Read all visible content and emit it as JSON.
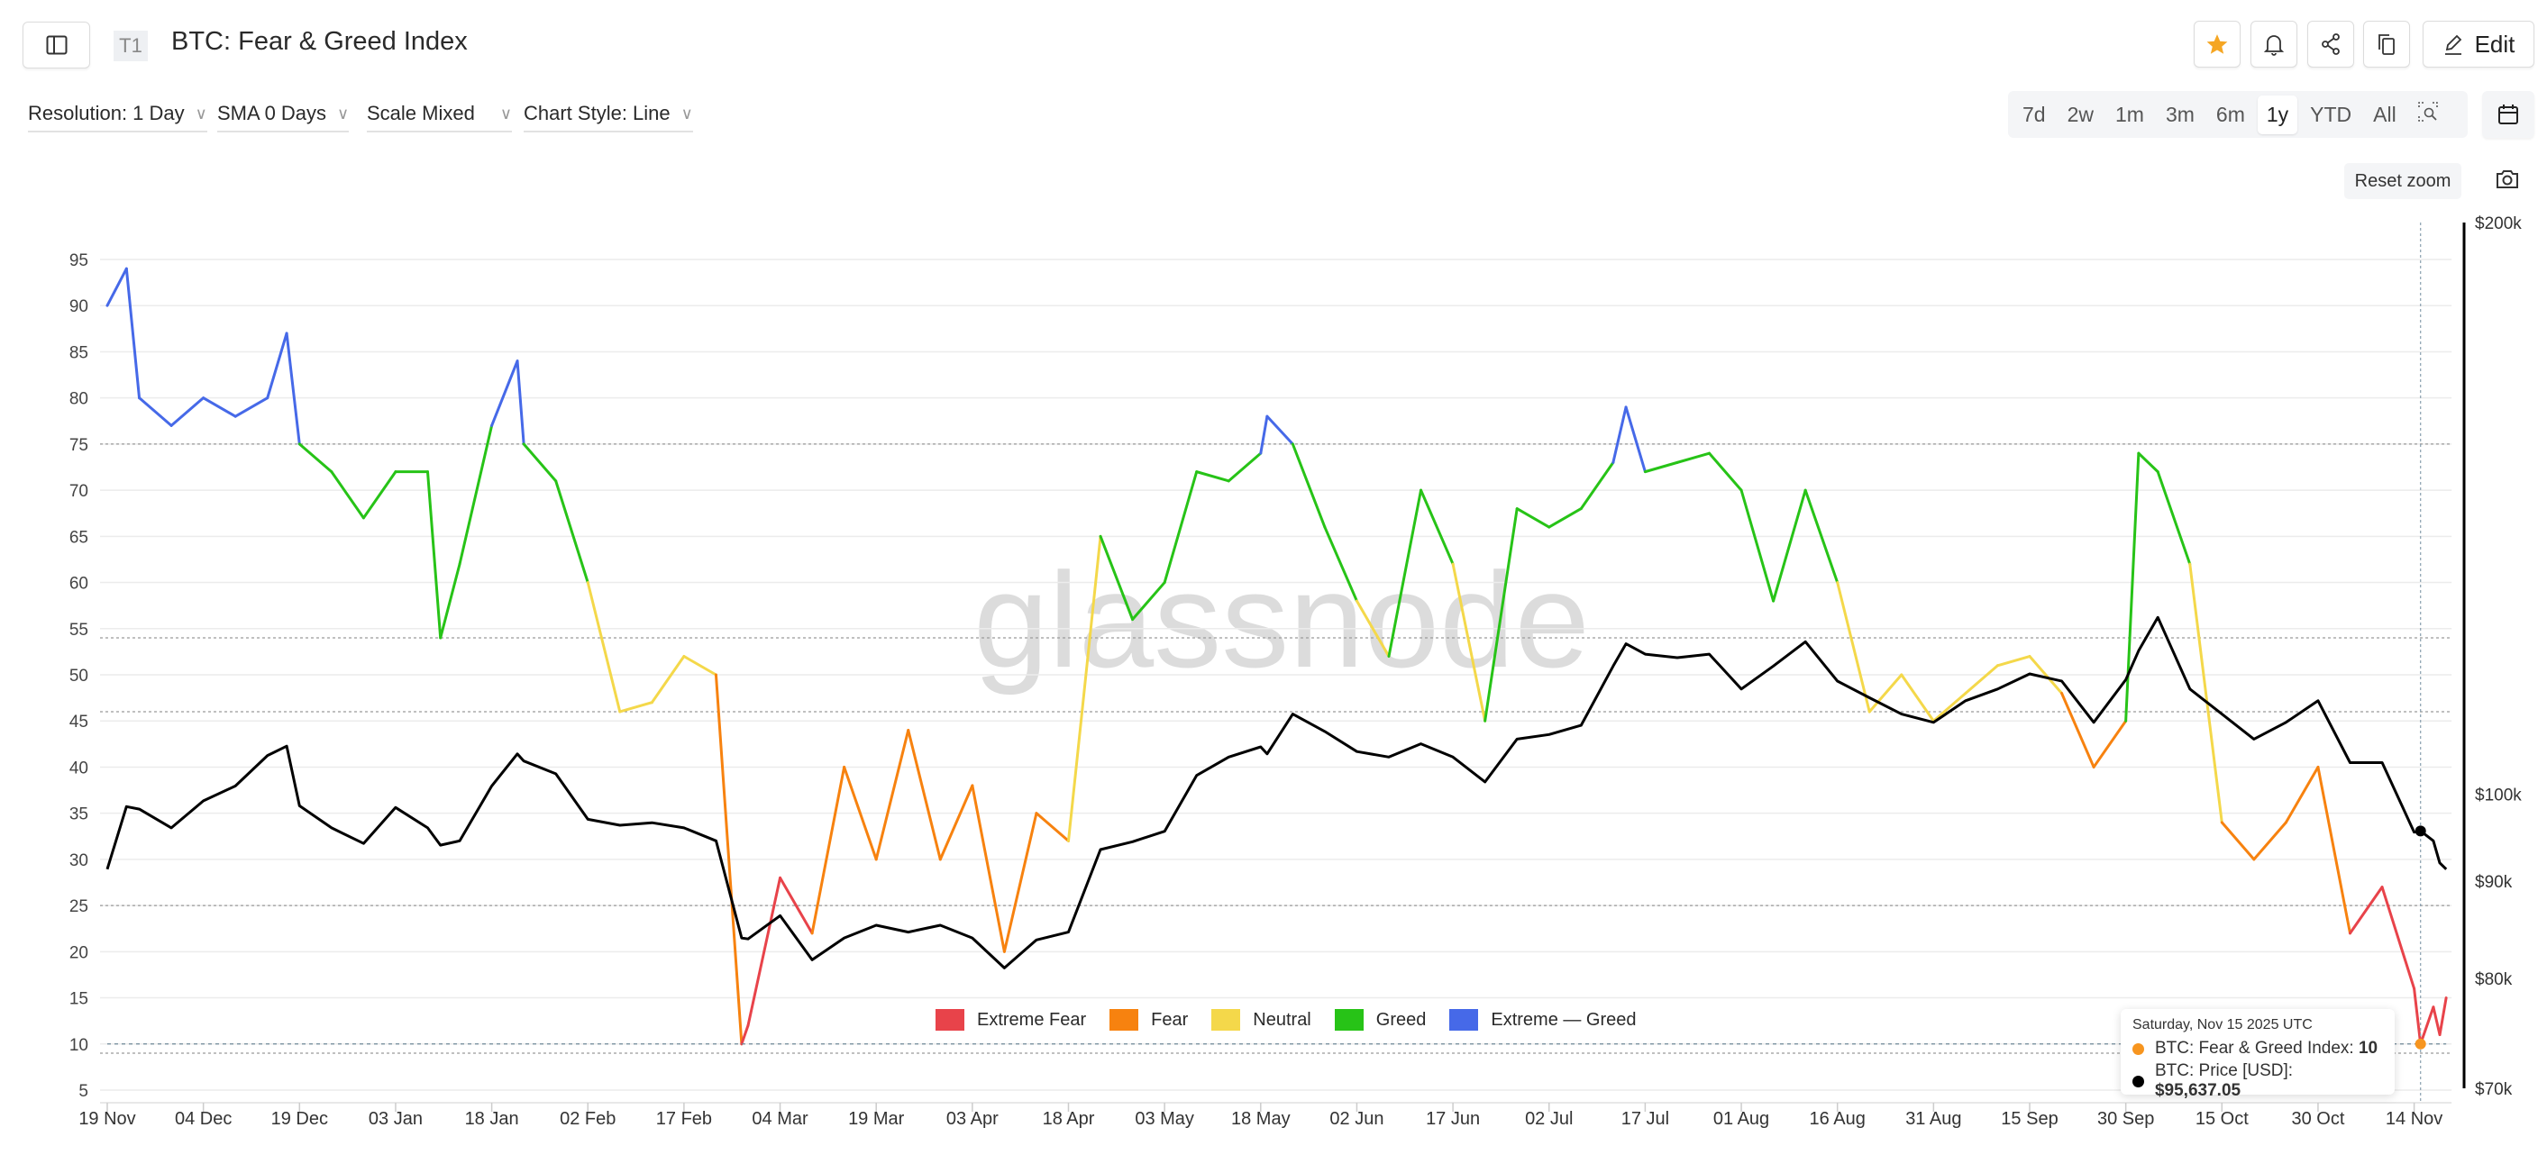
{
  "header": {
    "badge": "T1",
    "title": "BTC: Fear & Greed Index",
    "edit_label": "Edit",
    "star_color": "#f5a623"
  },
  "toolbar": {
    "resolution": "Resolution: 1 Day",
    "sma": "SMA 0 Days",
    "scale": "Scale Mixed",
    "chart_style": "Chart Style: Line"
  },
  "ranges": [
    "7d",
    "2w",
    "1m",
    "3m",
    "6m",
    "1y",
    "YTD",
    "All"
  ],
  "active_range": "1y",
  "reset_zoom": "Reset zoom",
  "watermark": "glassnode",
  "legend": [
    {
      "label": "Extreme Fear",
      "color": "#e8434a"
    },
    {
      "label": "Fear",
      "color": "#f7820f"
    },
    {
      "label": "Neutral",
      "color": "#f4d84a"
    },
    {
      "label": "Greed",
      "color": "#27c317"
    },
    {
      "label": "Extreme — Greed",
      "color": "#4669e8"
    }
  ],
  "tooltip": {
    "date": "Saturday, Nov 15 2025 UTC",
    "fgi_label": "BTC: Fear & Greed Index: ",
    "fgi_value": "10",
    "price_label": "BTC: Price [USD]: ",
    "price_value": "$95,637.05",
    "fgi_color": "#f7951f",
    "price_color": "#000000"
  },
  "chart_data": {
    "type": "line",
    "x_ticks": [
      "19 Nov",
      "04 Dec",
      "19 Dec",
      "03 Jan",
      "18 Jan",
      "02 Feb",
      "17 Feb",
      "04 Mar",
      "19 Mar",
      "03 Apr",
      "18 Apr",
      "03 May",
      "18 May",
      "02 Jun",
      "17 Jun",
      "02 Jul",
      "17 Jul",
      "01 Aug",
      "16 Aug",
      "31 Aug",
      "15 Sep",
      "30 Sep",
      "15 Oct",
      "30 Oct",
      "14 Nov"
    ],
    "y_left_ticks": [
      5,
      10,
      15,
      20,
      25,
      30,
      35,
      40,
      45,
      50,
      55,
      60,
      65,
      70,
      75,
      80,
      85,
      90,
      95
    ],
    "y_left_range": [
      5,
      95
    ],
    "y_right_ticks": [
      "$200k",
      "$100k",
      "$90k",
      "$80k",
      "$70k"
    ],
    "y_right_values": [
      200000,
      100000,
      90000,
      80000,
      70000
    ],
    "y_right_scale": "log",
    "y_right_range": [
      70000,
      200000
    ],
    "grid": true,
    "legend_position": "bottom-center",
    "zones": {
      "extreme_fear_max": 25,
      "fear_max": 45,
      "neutral_max": 55,
      "greed_max": 75
    },
    "dates": [
      "2024-11-19",
      "2024-11-22",
      "2024-11-24",
      "2024-11-29",
      "2024-12-04",
      "2024-12-09",
      "2024-12-14",
      "2024-12-17",
      "2024-12-19",
      "2024-12-24",
      "2024-12-29",
      "2025-01-03",
      "2025-01-08",
      "2025-01-10",
      "2025-01-13",
      "2025-01-18",
      "2025-01-22",
      "2025-01-23",
      "2025-01-28",
      "2025-02-02",
      "2025-02-07",
      "2025-02-12",
      "2025-02-17",
      "2025-02-22",
      "2025-02-26",
      "2025-02-27",
      "2025-03-04",
      "2025-03-09",
      "2025-03-14",
      "2025-03-19",
      "2025-03-24",
      "2025-03-29",
      "2025-04-03",
      "2025-04-08",
      "2025-04-13",
      "2025-04-18",
      "2025-04-23",
      "2025-04-28",
      "2025-05-03",
      "2025-05-08",
      "2025-05-13",
      "2025-05-18",
      "2025-05-19",
      "2025-05-23",
      "2025-05-28",
      "2025-06-02",
      "2025-06-07",
      "2025-06-12",
      "2025-06-17",
      "2025-06-22",
      "2025-06-27",
      "2025-07-02",
      "2025-07-07",
      "2025-07-12",
      "2025-07-14",
      "2025-07-17",
      "2025-07-22",
      "2025-07-27",
      "2025-08-01",
      "2025-08-06",
      "2025-08-11",
      "2025-08-16",
      "2025-08-21",
      "2025-08-26",
      "2025-08-31",
      "2025-09-05",
      "2025-09-10",
      "2025-09-15",
      "2025-09-20",
      "2025-09-25",
      "2025-09-30",
      "2025-10-02",
      "2025-10-05",
      "2025-10-10",
      "2025-10-15",
      "2025-10-20",
      "2025-10-25",
      "2025-10-30",
      "2025-11-04",
      "2025-11-09",
      "2025-11-14",
      "2025-11-15",
      "2025-11-17",
      "2025-11-18",
      "2025-11-19"
    ],
    "series": [
      {
        "name": "BTC: Fear & Greed Index",
        "values": [
          90,
          94,
          80,
          77,
          80,
          78,
          80,
          87,
          75,
          72,
          67,
          72,
          72,
          54,
          62,
          77,
          84,
          75,
          71,
          60,
          46,
          47,
          52,
          50,
          10,
          12,
          28,
          22,
          40,
          30,
          44,
          30,
          38,
          20,
          35,
          32,
          65,
          56,
          60,
          72,
          71,
          74,
          78,
          75,
          66,
          58,
          52,
          70,
          62,
          45,
          68,
          66,
          68,
          73,
          79,
          72,
          73,
          74,
          70,
          58,
          70,
          60,
          46,
          50,
          45,
          48,
          51,
          52,
          48,
          40,
          45,
          74,
          72,
          62,
          34,
          30,
          34,
          40,
          22,
          27,
          16,
          10,
          14,
          11,
          15
        ]
      },
      {
        "name": "BTC: Price [USD]",
        "values": [
          91300,
          98500,
          98200,
          96000,
          99200,
          101000,
          104800,
          106000,
          98600,
          96000,
          94200,
          98400,
          96000,
          94000,
          94500,
          101000,
          105000,
          104100,
          102500,
          97000,
          96300,
          96600,
          96000,
          94500,
          84000,
          83900,
          86300,
          81800,
          84000,
          85300,
          84600,
          85300,
          84000,
          81000,
          83800,
          84600,
          93500,
          94400,
          95600,
          102300,
          104600,
          105900,
          105000,
          110200,
          107900,
          105300,
          104600,
          106300,
          104600,
          101500,
          106900,
          107500,
          108700,
          116800,
          120000,
          118500,
          118000,
          118500,
          113600,
          116800,
          120300,
          114700,
          112400,
          110200,
          109100,
          112000,
          113600,
          115700,
          114700,
          109100,
          114900,
          119000,
          123900,
          113600,
          110200,
          106900,
          109100,
          112000,
          103900,
          103900,
          95500,
          95637.05,
          94500,
          92000,
          91300
        ]
      }
    ],
    "highlight_date": "2025-11-15"
  }
}
